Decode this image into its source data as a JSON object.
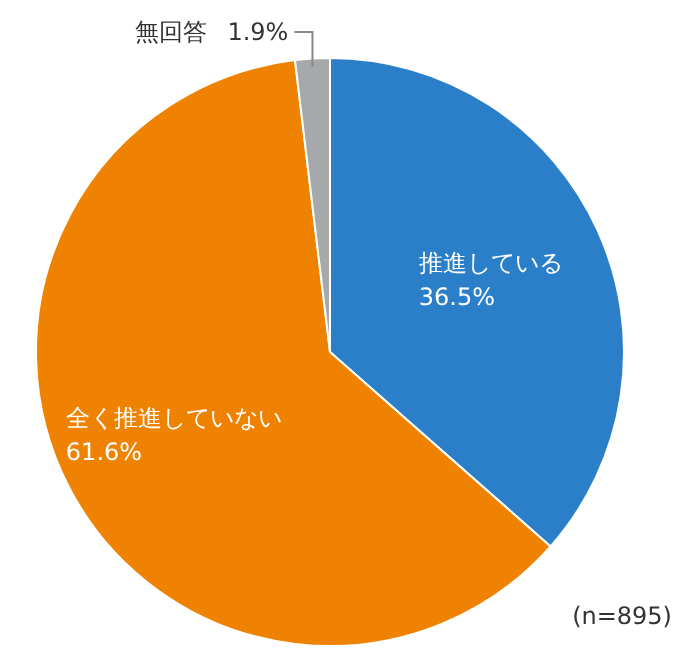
{
  "chart_data": {
    "type": "pie",
    "categories": [
      "推進している",
      "全く推進していない",
      "無回答"
    ],
    "values": [
      36.5,
      61.6,
      1.9
    ],
    "value_labels": [
      "36.5%",
      "61.6%",
      "1.9%"
    ],
    "colors": [
      "#2b7fc9",
      "#ef8200",
      "#a6a9ab"
    ],
    "annotations": [
      "(n=895)"
    ]
  }
}
